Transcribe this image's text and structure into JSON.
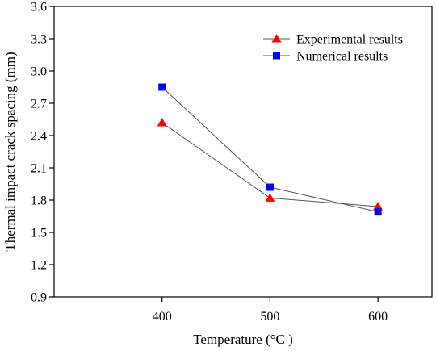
{
  "chart_data": {
    "type": "line",
    "xlabel": "Temperature (°C )",
    "ylabel": "Thermal impact crack spacing (mm)",
    "x": [
      400,
      500,
      600
    ],
    "xlim": [
      300,
      650
    ],
    "xticks": [
      400,
      500,
      600
    ],
    "ylim": [
      0.9,
      3.6
    ],
    "yticks": [
      "0.9",
      "1.2",
      "1.5",
      "1.8",
      "2.1",
      "2.4",
      "2.7",
      "3.0",
      "3.3",
      "3.6"
    ],
    "grid": false,
    "legend_position": "top-right",
    "series": [
      {
        "name": "Experimental results",
        "values": [
          2.52,
          1.82,
          1.74
        ],
        "marker": "triangle",
        "color": "#ff0000"
      },
      {
        "name": "Numerical results",
        "values": [
          2.85,
          1.92,
          1.69
        ],
        "marker": "square",
        "color": "#0000ff"
      }
    ],
    "line_color": "#555555"
  }
}
